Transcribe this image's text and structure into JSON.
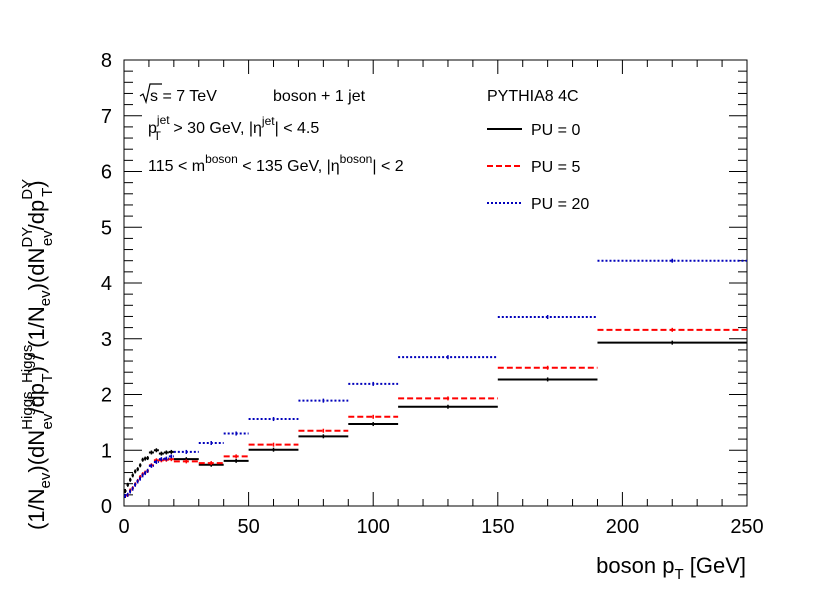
{
  "chart_data": {
    "type": "step-histogram",
    "xlabel_main": "boson p",
    "xlabel_sub": "T",
    "xlabel_unit": "[GeV]",
    "ylabel_parts": {
      "p1": "(1/N",
      "p1sub": "ev",
      "p2": ")(dN",
      "p2sup": "Higgs",
      "p2sub": "ev",
      "p3": "/dp",
      "p3sup": "Higgs",
      "p3sub": "T",
      "p4": ") / (1/N",
      "p4sub": "ev",
      "p5": ")(dN",
      "p5sup": "DY",
      "p5sub": "ev",
      "p6": "/dp",
      "p6sup": "DY",
      "p6sub": "T",
      "p7": ")"
    },
    "xlim": [
      0,
      250
    ],
    "ylim": [
      0,
      8
    ],
    "x_ticks": [
      "0",
      "50",
      "100",
      "150",
      "200",
      "250"
    ],
    "y_ticks": [
      "0",
      "1",
      "2",
      "3",
      "4",
      "5",
      "6",
      "7",
      "8"
    ],
    "annotations": {
      "sqrt_s": "s = 7 TeV",
      "process": "boson + 1 jet",
      "generator": "PYTHIA8 4C",
      "cut1_a": "p",
      "cut1_asup": "jet",
      "cut1_asub": "T",
      "cut1_b": " > 30 GeV, |η",
      "cut1_bsup": "jet",
      "cut1_c": "| < 4.5",
      "cut2_a": "115 < m",
      "cut2_asup": "boson",
      "cut2_b": " < 135 GeV, |η",
      "cut2_bsup": "boson",
      "cut2_c": "| < 2"
    },
    "bin_edges": [
      0,
      1,
      2,
      3,
      4,
      5,
      6,
      7,
      8,
      9,
      10,
      12,
      14,
      16,
      18,
      20,
      30,
      40,
      50,
      70,
      90,
      110,
      150,
      190,
      250
    ],
    "series": [
      {
        "name": "PU = 0",
        "color": "#000000",
        "style": "solid",
        "values": [
          0.27,
          0.38,
          0.47,
          0.55,
          0.62,
          0.66,
          0.73,
          0.83,
          0.85,
          0.86,
          0.96,
          1.0,
          0.94,
          0.96,
          0.97,
          0.84,
          0.74,
          0.81,
          1.01,
          1.25,
          1.47,
          1.78,
          2.27,
          2.93
        ]
      },
      {
        "name": "PU = 5",
        "color": "#ff0000",
        "style": "dashed",
        "values": [
          0.18,
          0.2,
          0.28,
          0.32,
          0.39,
          0.45,
          0.52,
          0.57,
          0.6,
          0.63,
          0.73,
          0.82,
          0.82,
          0.83,
          0.84,
          0.8,
          0.77,
          0.89,
          1.1,
          1.35,
          1.6,
          1.93,
          2.48,
          3.16
        ]
      },
      {
        "name": "PU = 20",
        "color": "#0000bb",
        "style": "dotted",
        "values": [
          0.18,
          0.2,
          0.26,
          0.31,
          0.38,
          0.44,
          0.49,
          0.55,
          0.59,
          0.63,
          0.72,
          0.79,
          0.84,
          0.85,
          0.89,
          0.97,
          1.13,
          1.3,
          1.56,
          1.89,
          2.19,
          2.67,
          3.39,
          4.4
        ]
      }
    ]
  }
}
